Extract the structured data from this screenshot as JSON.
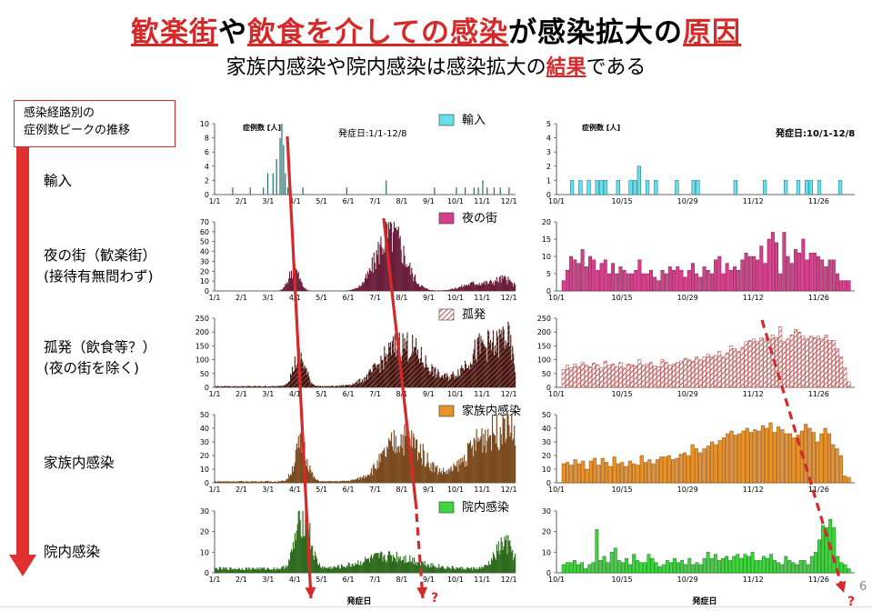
{
  "title": {
    "part1": "歓楽街",
    "part2": "や",
    "part3": "飲食を介しての感染",
    "part4": "が感染拡大の",
    "part5": "原因"
  },
  "subtitle": {
    "part1": "家族内感染や院内感染は感染拡大の",
    "part2": "結果",
    "part3": "である"
  },
  "legend_box": {
    "line1": "感染経路別の",
    "line2": "症例数ピークの推移"
  },
  "routes": [
    {
      "line1": "輸入",
      "line2": ""
    },
    {
      "line1": "夜の街（歓楽街）",
      "line2": "(接待有無問わず)"
    },
    {
      "line1": "孤発（飲食等？）",
      "line2": "(夜の街を除く)"
    },
    {
      "line1": "家族内感染",
      "line2": ""
    },
    {
      "line1": "院内感染",
      "line2": ""
    }
  ],
  "axis_caption": "発症日",
  "ylabel_top": "症例数 [人]",
  "period_left": "発症日:1/1-12/8",
  "period_right": "発症日:10/1-12/8",
  "question_mark": "?",
  "page_number": "6",
  "colors": {
    "accent": "#d62a2a",
    "import": "#66e0ee",
    "night": "#d63f8c",
    "isolated_stroke": "#c0504d",
    "household": "#e8922a",
    "hospital": "#3dd63d",
    "left_import": "#1f6f6f",
    "left_night": "#6a1f3a",
    "left_isolated": "#6b3a2a",
    "left_household": "#7a4a1e",
    "left_hospital": "#2e6b1e"
  },
  "chart_data": [
    {
      "type": "bar",
      "series_name": "輸入",
      "x_ticks": [
        "1/1",
        "2/1",
        "3/1",
        "4/1",
        "5/1",
        "6/1",
        "7/1",
        "8/1",
        "9/1",
        "10/1",
        "11/1",
        "12/1"
      ],
      "yticks": [
        0,
        2,
        4,
        6,
        8,
        10
      ],
      "ylim": [
        0,
        10
      ],
      "x_range": "1/1-12/8",
      "peaks": [
        {
          "x": "3/15",
          "y": 0
        },
        {
          "x": "3/20",
          "y": 8
        },
        {
          "x": "3/22",
          "y": 9
        },
        {
          "x": "3/25",
          "y": 0
        }
      ]
    },
    {
      "type": "bar",
      "series_name": "夜の街",
      "x_ticks": [
        "1/1",
        "2/1",
        "3/1",
        "4/1",
        "5/1",
        "6/1",
        "7/1",
        "8/1",
        "9/1",
        "10/1",
        "11/1",
        "12/1"
      ],
      "yticks": [
        0,
        10,
        20,
        30,
        40,
        50,
        60,
        70
      ],
      "ylim": [
        0,
        70
      ],
      "peaks": [
        {
          "x": "4/1",
          "y": 23
        },
        {
          "x": "7/20",
          "y": 60
        }
      ]
    },
    {
      "type": "bar",
      "series_name": "孤発",
      "x_ticks": [
        "1/1",
        "2/1",
        "3/1",
        "4/1",
        "5/1",
        "6/1",
        "7/1",
        "8/1",
        "9/1",
        "10/1",
        "11/1",
        "12/1"
      ],
      "yticks": [
        0,
        50,
        100,
        150,
        200,
        250
      ],
      "ylim": [
        0,
        250
      ],
      "peaks": [
        {
          "x": "4/5",
          "y": 110
        },
        {
          "x": "8/1",
          "y": 155
        },
        {
          "x": "12/1",
          "y": 230
        }
      ]
    },
    {
      "type": "bar",
      "series_name": "家族内感染",
      "x_ticks": [
        "1/1",
        "2/1",
        "3/1",
        "4/1",
        "5/1",
        "6/1",
        "7/1",
        "8/1",
        "9/1",
        "10/1",
        "11/1",
        "12/1"
      ],
      "yticks": [
        0,
        10,
        20,
        30,
        40,
        50
      ],
      "ylim": [
        0,
        50
      ],
      "peaks": [
        {
          "x": "4/10",
          "y": 30
        },
        {
          "x": "8/5",
          "y": 32
        },
        {
          "x": "12/1",
          "y": 45
        }
      ]
    },
    {
      "type": "bar",
      "series_name": "院内感染",
      "x_ticks": [
        "1/1",
        "2/1",
        "3/1",
        "4/1",
        "5/1",
        "6/1",
        "7/1",
        "8/1",
        "9/1",
        "10/1",
        "11/1",
        "12/1"
      ],
      "yticks": [
        0,
        10,
        20,
        30
      ],
      "ylim": [
        0,
        30
      ],
      "peaks": [
        {
          "x": "4/15",
          "y": 28
        },
        {
          "x": "12/1",
          "y": 25
        }
      ]
    },
    {
      "type": "bar",
      "series_name": "輸入",
      "x_ticks": [
        "10/1",
        "10/15",
        "10/29",
        "11/12",
        "11/26"
      ],
      "yticks": [
        0,
        1,
        2,
        3,
        4,
        5
      ],
      "ylim": [
        0,
        5
      ],
      "values": [
        0,
        0,
        1,
        0,
        1,
        0,
        1,
        0,
        1,
        1,
        1,
        0,
        0,
        1,
        0,
        0,
        1,
        1,
        2,
        0,
        1,
        0,
        1,
        0,
        0,
        0,
        0,
        1,
        0,
        0,
        0,
        1,
        1,
        0,
        0,
        0,
        0,
        0,
        0,
        0,
        0,
        1,
        0,
        0,
        0,
        0,
        0,
        0,
        1,
        0,
        0,
        0,
        0,
        1,
        0,
        0,
        1,
        0,
        1,
        1,
        0,
        1,
        0,
        0,
        0,
        0,
        1,
        0,
        0
      ]
    },
    {
      "type": "bar",
      "series_name": "夜の街",
      "x_ticks": [
        "10/1",
        "10/15",
        "10/29",
        "11/12",
        "11/26"
      ],
      "yticks": [
        0,
        5,
        10,
        15,
        20
      ],
      "ylim": [
        0,
        20
      ],
      "values": [
        3,
        6,
        10,
        9,
        8,
        12,
        7,
        10,
        9,
        6,
        8,
        9,
        5,
        8,
        5,
        7,
        6,
        5,
        5,
        6,
        9,
        5,
        5,
        6,
        4,
        3,
        6,
        5,
        7,
        6,
        7,
        6,
        4,
        6,
        8,
        5,
        4,
        7,
        6,
        5,
        9,
        10,
        5,
        8,
        6,
        7,
        6,
        9,
        11,
        10,
        10,
        9,
        13,
        8,
        15,
        17,
        14,
        5,
        17,
        10,
        8,
        12,
        11,
        15,
        9,
        11,
        11,
        10,
        9,
        7,
        9,
        9,
        5,
        3,
        3,
        3
      ]
    },
    {
      "type": "bar",
      "series_name": "孤発",
      "x_ticks": [
        "10/1",
        "10/15",
        "10/29",
        "11/12",
        "11/26"
      ],
      "yticks": [
        0,
        50,
        100,
        150,
        200,
        250
      ],
      "ylim": [
        0,
        250
      ],
      "values": [
        65,
        80,
        70,
        85,
        75,
        90,
        80,
        75,
        88,
        82,
        70,
        95,
        80,
        85,
        75,
        90,
        70,
        85,
        82,
        78,
        100,
        80,
        85,
        90,
        78,
        75,
        100,
        90,
        80,
        85,
        90,
        95,
        105,
        100,
        95,
        110,
        100,
        110,
        120,
        110,
        115,
        130,
        110,
        125,
        150,
        140,
        130,
        145,
        165,
        170,
        175,
        165,
        180,
        175,
        175,
        190,
        180,
        220,
        165,
        175,
        190,
        210,
        200,
        185,
        175,
        185,
        180,
        185,
        175,
        190,
        170,
        170,
        140,
        110,
        70,
        20
      ]
    },
    {
      "type": "bar",
      "series_name": "家族内感染",
      "x_ticks": [
        "10/1",
        "10/15",
        "10/29",
        "11/12",
        "11/26"
      ],
      "yticks": [
        0,
        10,
        20,
        30,
        40,
        50
      ],
      "ylim": [
        0,
        50
      ],
      "values": [
        14,
        15,
        13,
        17,
        14,
        16,
        10,
        16,
        18,
        13,
        18,
        15,
        12,
        19,
        14,
        15,
        12,
        16,
        14,
        13,
        20,
        15,
        17,
        14,
        17,
        19,
        19,
        20,
        17,
        18,
        21,
        22,
        20,
        28,
        25,
        22,
        25,
        27,
        30,
        28,
        31,
        33,
        36,
        38,
        35,
        36,
        38,
        40,
        37,
        39,
        38,
        42,
        40,
        44,
        37,
        41,
        39,
        36,
        36,
        33,
        35,
        38,
        43,
        40,
        37,
        30,
        36,
        40,
        36,
        28,
        25,
        20,
        5,
        4
      ]
    },
    {
      "type": "bar",
      "series_name": "院内感染",
      "x_ticks": [
        "10/1",
        "10/15",
        "10/29",
        "11/12",
        "11/26"
      ],
      "yticks": [
        0,
        10,
        20,
        30
      ],
      "ylim": [
        0,
        30
      ],
      "values": [
        4,
        5,
        5,
        6,
        4,
        5,
        2,
        4,
        5,
        21,
        6,
        8,
        5,
        10,
        12,
        6,
        5,
        7,
        4,
        9,
        6,
        5,
        5,
        9,
        7,
        5,
        3,
        4,
        6,
        5,
        7,
        5,
        6,
        4,
        7,
        4,
        5,
        4,
        7,
        10,
        7,
        9,
        6,
        7,
        8,
        6,
        8,
        9,
        7,
        9,
        8,
        10,
        6,
        6,
        8,
        7,
        9,
        6,
        5,
        4,
        8,
        6,
        5,
        4,
        6,
        6,
        4,
        8,
        10,
        16,
        23,
        22,
        26,
        22,
        8,
        5,
        4,
        2
      ]
    }
  ]
}
